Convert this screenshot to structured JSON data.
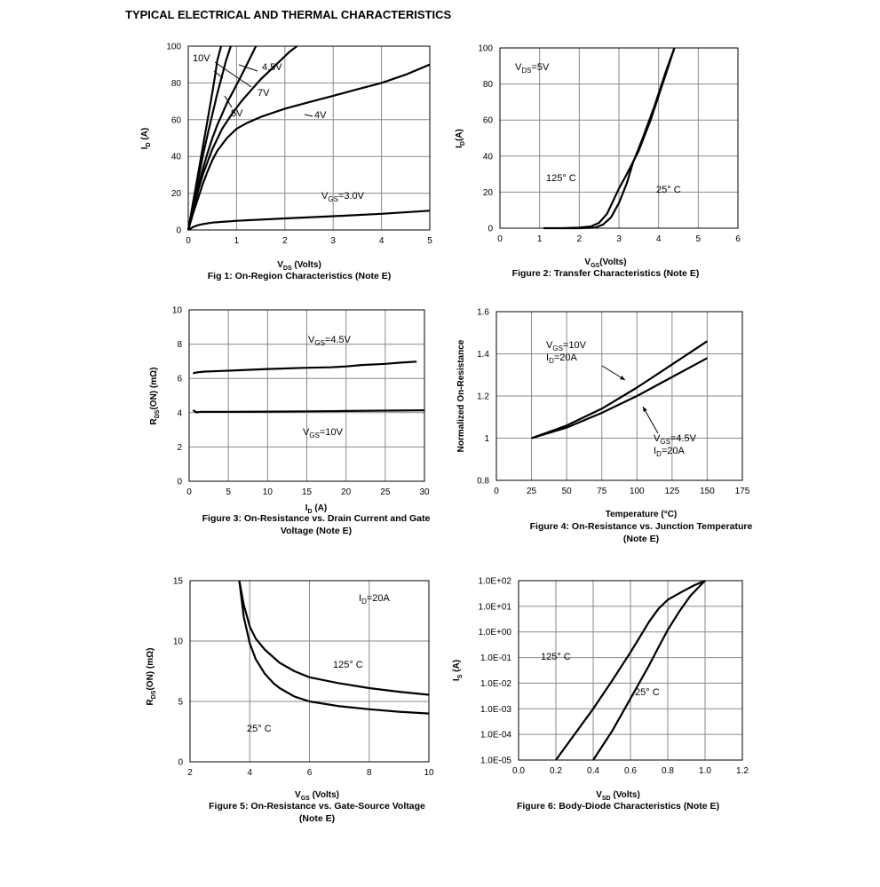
{
  "page": {
    "title": "TYPICAL ELECTRICAL AND THERMAL CHARACTERISTICS"
  },
  "chart_data": [
    {
      "id": "fig1",
      "type": "line",
      "caption": "Fig 1: On-Region Characteristics (Note E)",
      "xlabel": "V_DS (Volts)",
      "ylabel": "I_D (A)",
      "xlim": [
        0,
        5
      ],
      "ylim": [
        0,
        100
      ],
      "xticks": [
        0,
        1,
        2,
        3,
        4,
        5
      ],
      "yticks": [
        0,
        20,
        40,
        60,
        80,
        100
      ],
      "grid": true,
      "series": [
        {
          "name": "10V",
          "x": [
            0,
            0.1,
            0.2,
            0.3,
            0.4,
            0.5,
            0.56,
            0.6,
            0.68
          ],
          "y": [
            0,
            15,
            30,
            45,
            60,
            75,
            85,
            92,
            100
          ]
        },
        {
          "name": "7V",
          "x": [
            0,
            0.1,
            0.2,
            0.3,
            0.4,
            0.5,
            0.6,
            0.7,
            0.78,
            0.88
          ],
          "y": [
            0,
            14,
            27,
            40,
            52,
            63,
            74,
            84,
            92,
            100
          ]
        },
        {
          "name": "5V",
          "x": [
            0,
            0.1,
            0.2,
            0.3,
            0.4,
            0.5,
            0.6,
            0.7,
            0.8,
            0.9,
            1.0,
            1.1,
            1.25,
            1.4
          ],
          "y": [
            0,
            12,
            23,
            33,
            42,
            50,
            57,
            63,
            69,
            74,
            79,
            84,
            92,
            100
          ]
        },
        {
          "name": "4.5V",
          "x": [
            0,
            0.1,
            0.2,
            0.3,
            0.5,
            0.7,
            0.9,
            1.1,
            1.3,
            1.5,
            1.7,
            1.9,
            2.1,
            2.25
          ],
          "y": [
            0,
            11,
            21,
            30,
            44,
            55,
            63,
            70,
            76,
            82,
            87,
            92,
            97,
            100
          ]
        },
        {
          "name": "4V",
          "x": [
            0,
            0.1,
            0.2,
            0.3,
            0.4,
            0.5,
            0.6,
            0.8,
            1.0,
            1.2,
            1.5,
            2.0,
            2.5,
            3.0,
            3.5,
            4.0,
            4.5,
            5.0
          ],
          "y": [
            0,
            9,
            17,
            25,
            32,
            38,
            43,
            50,
            55,
            58,
            61.5,
            66,
            69.5,
            73,
            76.5,
            80,
            84.5,
            90
          ]
        },
        {
          "name": "VGS=3.0V",
          "x": [
            0,
            0.1,
            0.2,
            0.3,
            0.5,
            1.0,
            2.0,
            3.0,
            4.0,
            5.0
          ],
          "y": [
            0,
            1.6,
            2.6,
            3.2,
            4.0,
            5.0,
            6.3,
            7.5,
            8.8,
            10.5
          ]
        }
      ],
      "labels": [
        "10V",
        "4.5V",
        "7V",
        "5V",
        "4V",
        "VGS=3.0V"
      ]
    },
    {
      "id": "fig2",
      "type": "line",
      "caption": "Figure 2: Transfer Characteristics (Note E)",
      "xlabel": "V_GS(Volts)",
      "ylabel": "I_D(A)",
      "xlim": [
        0,
        6
      ],
      "ylim": [
        0,
        100
      ],
      "xticks": [
        0,
        1,
        2,
        3,
        4,
        5,
        6
      ],
      "yticks": [
        0,
        20,
        40,
        60,
        80,
        100
      ],
      "grid": true,
      "series": [
        {
          "name": "125° C",
          "x": [
            1.1,
            1.6,
            2.0,
            2.3,
            2.5,
            2.7,
            2.85,
            3.0,
            3.2,
            3.5,
            3.8,
            4.1,
            4.4
          ],
          "y": [
            0,
            0,
            0.3,
            1,
            3,
            8,
            15,
            22,
            30,
            43,
            60,
            80,
            100
          ]
        },
        {
          "name": "25° C",
          "x": [
            1.6,
            2.0,
            2.4,
            2.6,
            2.8,
            3.0,
            3.2,
            3.35,
            3.6,
            3.9,
            4.2,
            4.4
          ],
          "y": [
            0,
            0,
            0.3,
            2,
            6,
            14,
            25,
            36,
            50,
            68,
            88,
            100
          ]
        }
      ],
      "labels": [
        "VDS=5V",
        "125° C",
        "25° C"
      ]
    },
    {
      "id": "fig3",
      "type": "line",
      "caption": "Figure 3: On-Resistance vs. Drain Current and Gate Voltage (Note E)",
      "xlabel": "I_D (A)",
      "ylabel": "R_DS(ON) (mΩ)",
      "xlim": [
        0,
        30
      ],
      "ylim": [
        0,
        10
      ],
      "xticks": [
        0,
        5,
        10,
        15,
        20,
        25,
        30
      ],
      "yticks": [
        0,
        2,
        4,
        6,
        8,
        10
      ],
      "grid": true,
      "series": [
        {
          "name": "VGS=4.5V",
          "x": [
            0.5,
            1,
            2,
            5,
            10,
            15,
            18,
            20,
            22,
            25,
            27,
            29
          ],
          "y": [
            6.3,
            6.35,
            6.4,
            6.45,
            6.55,
            6.62,
            6.65,
            6.7,
            6.78,
            6.85,
            6.92,
            6.98
          ]
        },
        {
          "name": "VGS=10V",
          "x": [
            0.5,
            0.9,
            1.5,
            5,
            10,
            15,
            20,
            25,
            30
          ],
          "y": [
            4.15,
            4.02,
            4.05,
            4.05,
            4.06,
            4.08,
            4.1,
            4.12,
            4.14
          ]
        }
      ],
      "labels": [
        "VGS=4.5V",
        "VGS=10V"
      ]
    },
    {
      "id": "fig4",
      "type": "line",
      "caption": "Figure 4: On-Resistance vs. Junction Temperature (Note E)",
      "xlabel": "Temperature (°C)",
      "ylabel": "Normalized On-Resistance",
      "xlim": [
        0,
        175
      ],
      "ylim": [
        0.8,
        1.6
      ],
      "xticks": [
        0,
        25,
        50,
        75,
        100,
        125,
        150,
        175
      ],
      "yticks": [
        0.8,
        1,
        1.2,
        1.4,
        1.6
      ],
      "grid": true,
      "series": [
        {
          "name": "VGS=10V, ID=20A",
          "x": [
            25,
            50,
            75,
            100,
            125,
            150
          ],
          "y": [
            1.0,
            1.06,
            1.14,
            1.24,
            1.35,
            1.46
          ]
        },
        {
          "name": "VGS=4.5V, ID=20A",
          "x": [
            25,
            50,
            75,
            100,
            125,
            150
          ],
          "y": [
            1.0,
            1.05,
            1.12,
            1.2,
            1.29,
            1.38
          ]
        }
      ],
      "labels": [
        "VGS=10V",
        "ID=20A",
        "VGS=4.5V",
        "ID=20A"
      ]
    },
    {
      "id": "fig5",
      "type": "line",
      "caption": "Figure 5: On-Resistance vs. Gate-Source Voltage (Note E)",
      "xlabel": "V_GS (Volts)",
      "ylabel": "R_DS(ON) (mΩ)",
      "xlim": [
        2,
        10
      ],
      "ylim": [
        0,
        15
      ],
      "xticks": [
        2,
        4,
        6,
        8,
        10
      ],
      "yticks": [
        0,
        5,
        10,
        15
      ],
      "grid": true,
      "series": [
        {
          "name": "125° C",
          "x": [
            3.65,
            3.8,
            4.0,
            4.2,
            4.5,
            5.0,
            5.5,
            6.0,
            7.0,
            8.0,
            9.0,
            10.0
          ],
          "y": [
            15,
            13,
            11.2,
            10.2,
            9.3,
            8.2,
            7.5,
            7.0,
            6.5,
            6.1,
            5.8,
            5.55
          ]
        },
        {
          "name": "25° C",
          "x": [
            3.65,
            3.8,
            4.0,
            4.2,
            4.5,
            4.8,
            5.0,
            5.5,
            6.0,
            7.0,
            8.0,
            9.0,
            10.0
          ],
          "y": [
            15,
            12,
            9.8,
            8.5,
            7.3,
            6.5,
            6.1,
            5.4,
            5.0,
            4.6,
            4.35,
            4.15,
            4.0
          ]
        }
      ],
      "labels": [
        "ID=20A",
        "125° C",
        "25° C"
      ]
    },
    {
      "id": "fig6",
      "type": "line",
      "caption": "Figure 6: Body-Diode Characteristics (Note E)",
      "xlabel": "V_SD (Volts)",
      "ylabel": "I_S (A)",
      "xlim": [
        0.0,
        1.2
      ],
      "ylim": [
        1e-05,
        100
      ],
      "yscale": "log",
      "xticks": [
        "0.0",
        "0.2",
        "0.4",
        "0.6",
        "0.8",
        "1.0",
        "1.2"
      ],
      "yticks": [
        "1.0E-05",
        "1.0E-04",
        "1.0E-03",
        "1.0E-02",
        "1.0E-01",
        "1.0E+00",
        "1.0E+01",
        "1.0E+02"
      ],
      "grid": true,
      "series": [
        {
          "name": "125° C",
          "x": [
            0.2,
            0.3,
            0.4,
            0.5,
            0.6,
            0.65,
            0.7,
            0.75,
            0.8,
            0.87,
            0.94,
            1.0
          ],
          "y": [
            1e-05,
            0.0001,
            0.001,
            0.012,
            0.16,
            0.63,
            2.5,
            8,
            18,
            35,
            65,
            100
          ]
        },
        {
          "name": "25° C",
          "x": [
            0.4,
            0.5,
            0.6,
            0.7,
            0.75,
            0.8,
            0.86,
            0.92,
            0.97,
            1.0
          ],
          "y": [
            1e-05,
            0.00013,
            0.0025,
            0.05,
            0.25,
            1.2,
            6,
            25,
            60,
            100
          ]
        }
      ],
      "labels": [
        "125° C",
        "25° C"
      ]
    }
  ]
}
